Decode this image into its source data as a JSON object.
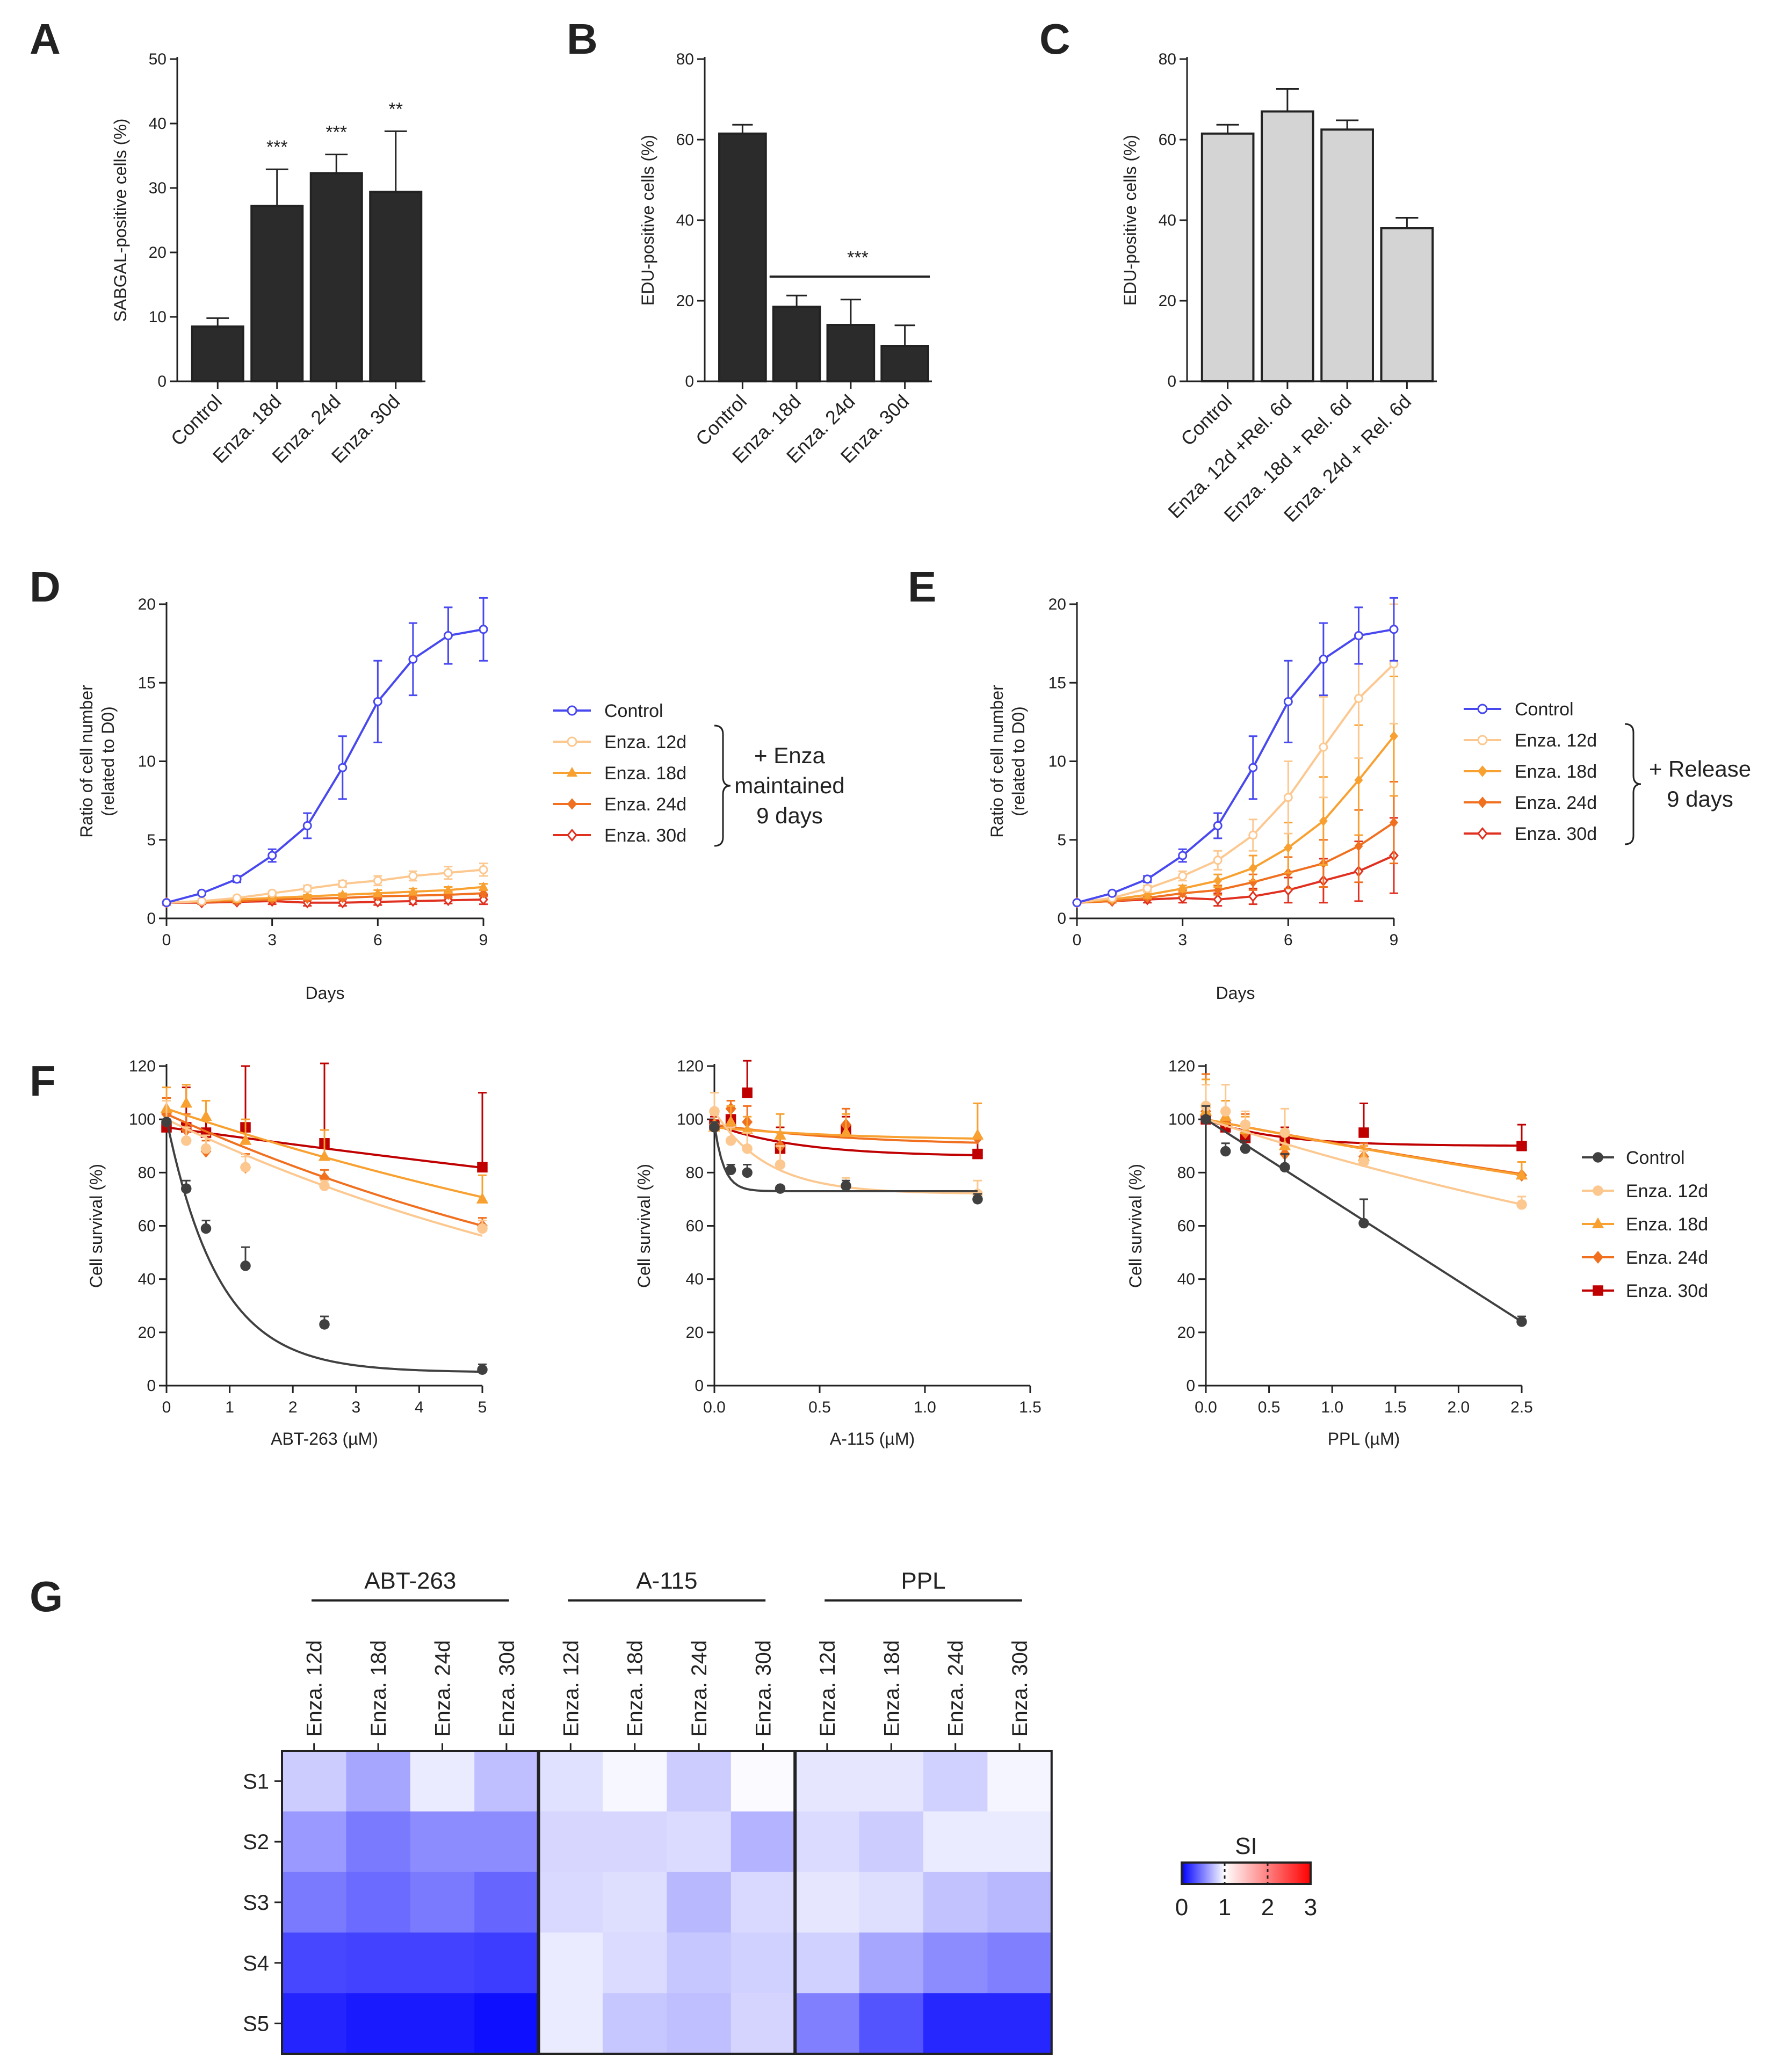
{
  "chart_data": [
    {
      "panel": "A",
      "type": "bar",
      "categories": [
        "Control",
        "Enza. 18d",
        "Enza. 24d",
        "Enza. 30d"
      ],
      "values": [
        8.5,
        27.2,
        32.3,
        29.4
      ],
      "errors": [
        1.3,
        5.7,
        2.9,
        9.4
      ],
      "annotations": [
        "",
        "***",
        "***",
        "**"
      ],
      "ylabel": "SABGAL-positive cells (%)",
      "ylim": [
        0,
        50
      ],
      "yticks": [
        0,
        10,
        20,
        30,
        40,
        50
      ],
      "bar_color": "#2b2b2b"
    },
    {
      "panel": "B",
      "type": "bar",
      "categories": [
        "Control",
        "Enza. 18d",
        "Enza. 24d",
        "Enza. 30d"
      ],
      "values": [
        61.5,
        18.5,
        14.0,
        8.8
      ],
      "errors": [
        2.2,
        2.8,
        6.3,
        5.1
      ],
      "significance": "***",
      "ylabel": "EDU-positive cells (%)",
      "ylim": [
        0,
        80
      ],
      "yticks": [
        0,
        20,
        40,
        60,
        80
      ],
      "bar_color": "#2b2b2b"
    },
    {
      "panel": "C",
      "type": "bar",
      "categories": [
        "Control",
        "Enza. 12d +Rel. 6d",
        "Enza. 18d + Rel. 6d",
        "Enza. 24d + Rel. 6d"
      ],
      "values": [
        61.5,
        67.0,
        62.5,
        38.0
      ],
      "errors": [
        2.2,
        5.6,
        2.3,
        2.6
      ],
      "ylabel": "EDU-positive cells (%)",
      "ylim": [
        0,
        80
      ],
      "yticks": [
        0,
        20,
        40,
        60,
        80
      ],
      "bar_color": "#d4d4d4"
    },
    {
      "panel": "D",
      "type": "line",
      "x": [
        0,
        1,
        2,
        3,
        4,
        5,
        6,
        7,
        8,
        9
      ],
      "series": [
        {
          "name": "Control",
          "color": "#4848f0",
          "marker": "circle-open",
          "values": [
            1.0,
            1.6,
            2.5,
            4.0,
            5.9,
            9.6,
            13.8,
            16.5,
            18.0,
            18.4
          ],
          "errors": [
            0,
            0.1,
            0.2,
            0.4,
            0.8,
            2.0,
            2.6,
            2.3,
            1.8,
            2.0
          ]
        },
        {
          "name": "Enza. 12d",
          "color": "#fcc890",
          "marker": "circle-open",
          "values": [
            1.0,
            1.1,
            1.3,
            1.6,
            1.9,
            2.2,
            2.4,
            2.7,
            2.9,
            3.1
          ],
          "errors": [
            0,
            0.1,
            0.1,
            0.1,
            0.2,
            0.2,
            0.3,
            0.3,
            0.4,
            0.4
          ]
        },
        {
          "name": "Enza. 18d",
          "color": "#f8a030",
          "marker": "triangle",
          "values": [
            1.0,
            1.1,
            1.2,
            1.3,
            1.4,
            1.5,
            1.6,
            1.7,
            1.8,
            2.0
          ],
          "errors": [
            0,
            0.1,
            0.1,
            0.1,
            0.1,
            0.1,
            0.2,
            0.2,
            0.2,
            0.2
          ]
        },
        {
          "name": "Enza. 24d",
          "color": "#f07020",
          "marker": "diamond",
          "values": [
            1.0,
            1.05,
            1.1,
            1.2,
            1.25,
            1.3,
            1.4,
            1.45,
            1.5,
            1.6
          ],
          "errors": [
            0,
            0.1,
            0.1,
            0.1,
            0.1,
            0.1,
            0.1,
            0.2,
            0.2,
            0.2
          ]
        },
        {
          "name": "Enza. 30d",
          "color": "#e03020",
          "marker": "diamond-open",
          "values": [
            1.0,
            1.0,
            1.05,
            1.1,
            1.0,
            1.0,
            1.05,
            1.1,
            1.15,
            1.2
          ],
          "errors": [
            0,
            0.1,
            0.1,
            0.2,
            0.2,
            0.2,
            0.2,
            0.2,
            0.2,
            0.3
          ]
        }
      ],
      "bracket_label": [
        "+ Enza",
        "maintained",
        "9 days"
      ],
      "xlabel": "Days",
      "ylabel": "Ratio of cell number (related to D0)",
      "xlim": [
        0,
        9
      ],
      "xticks": [
        0,
        3,
        6,
        9
      ],
      "ylim": [
        0,
        20
      ],
      "yticks": [
        0,
        5,
        10,
        15,
        20
      ]
    },
    {
      "panel": "E",
      "type": "line",
      "x": [
        0,
        1,
        2,
        3,
        4,
        5,
        6,
        7,
        8,
        9
      ],
      "series": [
        {
          "name": "Control",
          "color": "#4848f0",
          "marker": "circle-open",
          "values": [
            1.0,
            1.6,
            2.5,
            4.0,
            5.9,
            9.6,
            13.8,
            16.5,
            18.0,
            18.4
          ],
          "errors": [
            0,
            0.1,
            0.2,
            0.4,
            0.8,
            2.0,
            2.6,
            2.3,
            1.8,
            2.0
          ]
        },
        {
          "name": "Enza. 12d",
          "color": "#fcc890",
          "marker": "circle-open",
          "values": [
            1.0,
            1.3,
            1.9,
            2.7,
            3.7,
            5.3,
            7.7,
            10.9,
            14.0,
            16.2
          ],
          "errors": [
            0,
            0.1,
            0.2,
            0.3,
            0.6,
            1.0,
            2.3,
            3.2,
            3.8,
            3.8
          ]
        },
        {
          "name": "Enza. 18d",
          "color": "#f8a030",
          "marker": "diamond",
          "values": [
            1.0,
            1.2,
            1.5,
            1.9,
            2.4,
            3.2,
            4.5,
            6.2,
            8.8,
            11.6
          ],
          "errors": [
            0,
            0.1,
            0.2,
            0.2,
            0.4,
            0.8,
            1.6,
            2.8,
            3.5,
            3.8
          ]
        },
        {
          "name": "Enza. 24d",
          "color": "#f07020",
          "marker": "diamond",
          "values": [
            1.0,
            1.1,
            1.3,
            1.6,
            1.8,
            2.3,
            2.9,
            3.5,
            4.6,
            6.1
          ],
          "errors": [
            0,
            0.1,
            0.1,
            0.2,
            0.3,
            0.5,
            1.0,
            1.5,
            2.3,
            2.6
          ]
        },
        {
          "name": "Enza. 30d",
          "color": "#e03020",
          "marker": "diamond-open",
          "values": [
            1.0,
            1.1,
            1.2,
            1.3,
            1.2,
            1.4,
            1.8,
            2.4,
            3.0,
            4.0
          ],
          "errors": [
            0,
            0.1,
            0.2,
            0.3,
            0.4,
            0.5,
            0.8,
            1.4,
            1.9,
            2.4
          ]
        }
      ],
      "bracket_label": [
        "+ Release",
        "9 days"
      ],
      "xlabel": "Days",
      "ylabel": "Ratio of cell number (related to D0)",
      "xlim": [
        0,
        9
      ],
      "xticks": [
        0,
        3,
        6,
        9
      ],
      "ylim": [
        0,
        20
      ],
      "yticks": [
        0,
        5,
        10,
        15,
        20
      ]
    },
    {
      "panel": "F1",
      "type": "scatter",
      "x": [
        0,
        0.3125,
        0.625,
        1.25,
        2.5,
        5
      ],
      "series": [
        {
          "name": "Control",
          "color": "#404040",
          "marker": "circle",
          "values": [
            99,
            74,
            59,
            45,
            23,
            6
          ],
          "errors": [
            1,
            3,
            3,
            7,
            3,
            2
          ],
          "fit": [
            100,
            15,
            5,
            1.2
          ]
        },
        {
          "name": "Enza. 12d",
          "color": "#fcc890",
          "marker": "circle",
          "values": [
            99,
            92,
            89,
            82,
            75,
            59
          ],
          "errors": [
            8,
            5,
            5,
            4,
            2,
            3
          ],
          "fit": [
            100,
            0,
            0,
            0.115
          ]
        },
        {
          "name": "Enza. 18d",
          "color": "#f8a030",
          "marker": "triangle",
          "values": [
            104,
            106,
            101,
            92,
            86,
            70
          ],
          "errors": [
            8,
            7,
            6,
            8,
            10,
            9
          ],
          "fit": [
            104,
            0,
            0,
            0.077
          ]
        },
        {
          "name": "Enza. 24d",
          "color": "#f07020",
          "marker": "diamond",
          "values": [
            102,
            96,
            88,
            82,
            78,
            60
          ],
          "errors": [
            6,
            6,
            4,
            5,
            3,
            3
          ],
          "fit": [
            102,
            0,
            0,
            0.106
          ]
        },
        {
          "name": "Enza. 30d",
          "color": "#c00000",
          "marker": "square",
          "values": [
            97,
            97,
            95,
            97,
            91,
            82
          ],
          "errors": [
            3,
            15,
            5,
            23,
            30,
            28
          ],
          "fit": [
            97,
            0,
            0,
            0.034
          ]
        }
      ],
      "xlabel": "ABT-263 (µM)",
      "ylabel": "Cell survival (%)",
      "xlim": [
        0,
        5
      ],
      "xticks": [
        0,
        1,
        2,
        3,
        4,
        5
      ],
      "ylim": [
        0,
        120
      ],
      "yticks": [
        0,
        20,
        40,
        60,
        80,
        100,
        120
      ]
    },
    {
      "panel": "F2",
      "type": "scatter",
      "x": [
        0,
        0.078,
        0.156,
        0.3125,
        0.625,
        1.25
      ],
      "series": [
        {
          "name": "Control",
          "color": "#404040",
          "marker": "circle",
          "values": [
            97,
            81,
            80,
            74,
            75,
            70
          ],
          "errors": [
            2,
            2,
            3,
            1,
            2,
            2
          ],
          "fit": [
            73,
            25,
            22
          ]
        },
        {
          "name": "Enza. 12d",
          "color": "#fcc890",
          "marker": "circle",
          "values": [
            103,
            92,
            89,
            83,
            75,
            72
          ],
          "errors": [
            7,
            5,
            6,
            7,
            3,
            5
          ],
          "fit": [
            72,
            31,
            4.0
          ]
        },
        {
          "name": "Enza. 18d",
          "color": "#f8a030",
          "marker": "triangle",
          "values": [
            97,
            99,
            96,
            94,
            95,
            94
          ],
          "errors": [
            5,
            6,
            5,
            8,
            7,
            12
          ],
          "fit": [
            92,
            5,
            1.5
          ]
        },
        {
          "name": "Enza. 24d",
          "color": "#f07020",
          "marker": "diamond",
          "values": [
            98,
            104,
            99,
            90,
            98,
            93
          ],
          "errors": [
            4,
            3,
            6,
            5,
            6,
            13
          ],
          "fit": [
            90,
            8,
            1.5
          ]
        },
        {
          "name": "Enza. 30d",
          "color": "#c00000",
          "marker": "square",
          "values": [
            98,
            100,
            110,
            89,
            96,
            87
          ],
          "errors": [
            3,
            4,
            12,
            8,
            5,
            6
          ],
          "fit": [
            86,
            12,
            2.5
          ]
        }
      ],
      "xlabel": "A-115 (µM)",
      "ylabel": "Cell survival (%)",
      "xlim": [
        0,
        1.5
      ],
      "xticks": [
        0.0,
        0.5,
        1.0,
        1.5
      ],
      "ylim": [
        0,
        120
      ],
      "yticks": [
        0,
        20,
        40,
        60,
        80,
        100,
        120
      ]
    },
    {
      "panel": "F3",
      "type": "scatter",
      "x": [
        0,
        0.156,
        0.3125,
        0.625,
        1.25,
        2.5
      ],
      "series": [
        {
          "name": "Control",
          "color": "#404040",
          "marker": "circle",
          "values": [
            100,
            88,
            89,
            82,
            61,
            24
          ],
          "errors": [
            5,
            3,
            3,
            5,
            9,
            2
          ],
          "fit": [
            100,
            30.4
          ]
        },
        {
          "name": "Enza. 12d",
          "color": "#fcc890",
          "marker": "circle",
          "values": [
            105,
            103,
            98,
            95,
            84,
            68
          ],
          "errors": [
            8,
            10,
            5,
            9,
            4,
            3
          ],
          "fit": [
            100,
            0.154
          ]
        },
        {
          "name": "Enza. 18d",
          "color": "#f8a030",
          "marker": "triangle",
          "values": [
            103,
            101,
            96,
            90,
            86,
            79
          ],
          "errors": [
            12,
            6,
            5,
            6,
            4,
            5
          ],
          "fit": [
            100,
            0.094
          ]
        },
        {
          "name": "Enza. 24d",
          "color": "#f07020",
          "marker": "diamond",
          "values": [
            103,
            99,
            95,
            87,
            86,
            79
          ],
          "errors": [
            14,
            8,
            7,
            7,
            5,
            5
          ],
          "fit": [
            100,
            0.092
          ]
        },
        {
          "name": "Enza. 30d",
          "color": "#c00000",
          "marker": "square",
          "values": [
            100,
            97,
            93,
            92,
            95,
            90
          ],
          "errors": [
            4,
            6,
            4,
            5,
            11,
            8
          ],
          "fit": [
            90,
            10,
            1.8
          ]
        }
      ],
      "xlabel": "PPL (µM)",
      "ylabel": "Cell survival (%)",
      "xlim": [
        0,
        2.5
      ],
      "xticks": [
        0.0,
        0.5,
        1.0,
        1.5,
        2.0,
        2.5
      ],
      "ylim": [
        0,
        120
      ],
      "yticks": [
        0,
        20,
        40,
        60,
        80,
        100,
        120
      ],
      "legend": [
        "Control",
        "Enza. 12d",
        "Enza. 18d",
        "Enza. 24d",
        "Enza. 30d"
      ]
    },
    {
      "panel": "G",
      "type": "heatmap",
      "groups": [
        "ABT-263",
        "A-115",
        "PPL"
      ],
      "columns": [
        "Enza. 12d",
        "Enza. 18d",
        "Enza. 24d",
        "Enza. 30d"
      ],
      "rows": [
        "S1",
        "S2",
        "S3",
        "S4",
        "S5"
      ],
      "values": [
        [
          0.8,
          0.65,
          0.92,
          0.75,
          0.88,
          0.97,
          0.8,
          0.98,
          0.9,
          0.9,
          0.82,
          0.96
        ],
        [
          0.6,
          0.48,
          0.55,
          0.55,
          0.84,
          0.84,
          0.86,
          0.7,
          0.86,
          0.8,
          0.92,
          0.92
        ],
        [
          0.48,
          0.42,
          0.48,
          0.4,
          0.85,
          0.87,
          0.72,
          0.85,
          0.9,
          0.87,
          0.76,
          0.72
        ],
        [
          0.28,
          0.26,
          0.26,
          0.24,
          0.92,
          0.86,
          0.78,
          0.82,
          0.82,
          0.65,
          0.55,
          0.5
        ],
        [
          0.14,
          0.1,
          0.1,
          0.06,
          0.92,
          0.78,
          0.75,
          0.83,
          0.5,
          0.33,
          0.15,
          0.15
        ]
      ],
      "colorbar": {
        "title": "SI",
        "ticks": [
          0,
          1,
          2,
          3
        ],
        "range": [
          0,
          3
        ],
        "low": "#0000ff",
        "mid": "#ffffff",
        "high": "#ff0000"
      }
    }
  ],
  "panel_letters": [
    "A",
    "B",
    "C",
    "D",
    "E",
    "F",
    "G"
  ]
}
